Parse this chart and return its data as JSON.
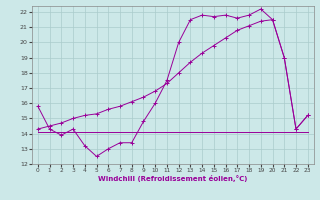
{
  "xlabel": "Windchill (Refroidissement éolien,°C)",
  "xlim": [
    -0.5,
    23.5
  ],
  "ylim": [
    12,
    22.4
  ],
  "yticks": [
    12,
    13,
    14,
    15,
    16,
    17,
    18,
    19,
    20,
    21,
    22
  ],
  "xticks": [
    0,
    1,
    2,
    3,
    4,
    5,
    6,
    7,
    8,
    9,
    10,
    11,
    12,
    13,
    14,
    15,
    16,
    17,
    18,
    19,
    20,
    21,
    22,
    23
  ],
  "background_color": "#cce8e8",
  "grid_color": "#aacccc",
  "line_color": "#990099",
  "series1_x": [
    0,
    1,
    2,
    3,
    4,
    5,
    6,
    7,
    8,
    9,
    10,
    11,
    12,
    13,
    14,
    15,
    16,
    17,
    18,
    19,
    20,
    21,
    22,
    23
  ],
  "series1_y": [
    15.8,
    14.3,
    13.9,
    14.3,
    13.2,
    12.5,
    13.0,
    13.4,
    13.4,
    14.8,
    16.0,
    17.5,
    20.0,
    21.5,
    21.8,
    21.7,
    21.8,
    21.6,
    21.8,
    22.2,
    21.5,
    19.0,
    14.3,
    15.2
  ],
  "series2_x": [
    0,
    22,
    23
  ],
  "series2_y": [
    14.1,
    14.1,
    14.1
  ],
  "series3_x": [
    0,
    1,
    2,
    3,
    4,
    5,
    6,
    7,
    8,
    9,
    10,
    11,
    12,
    13,
    14,
    15,
    16,
    17,
    18,
    19,
    20,
    21,
    22,
    23
  ],
  "series3_y": [
    14.3,
    14.5,
    14.7,
    15.0,
    15.2,
    15.3,
    15.6,
    15.8,
    16.1,
    16.4,
    16.8,
    17.3,
    18.0,
    18.7,
    19.3,
    19.8,
    20.3,
    20.8,
    21.1,
    21.4,
    21.5,
    19.0,
    14.3,
    15.2
  ]
}
